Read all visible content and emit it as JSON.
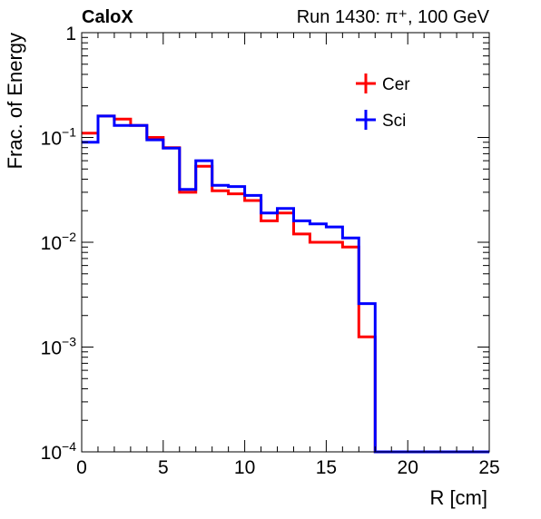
{
  "header": {
    "experiment": "CaloX",
    "run_info": "Run 1430: π⁺, 100 GeV"
  },
  "chart_data": {
    "type": "line",
    "style": "step-histogram",
    "xlabel": "R [cm]",
    "ylabel": "Frac. of Energy",
    "xlim": [
      0,
      25
    ],
    "ylim": [
      0.0001,
      1
    ],
    "yscale": "log",
    "grid": false,
    "legend_position": "top-right",
    "x_ticks": [
      0,
      5,
      10,
      15,
      20,
      25
    ],
    "y_ticks": [
      {
        "value": 0.0001,
        "base": "10",
        "exp": "−4"
      },
      {
        "value": 0.001,
        "base": "10",
        "exp": "−3"
      },
      {
        "value": 0.01,
        "base": "10",
        "exp": "−2"
      },
      {
        "value": 0.1,
        "base": "10",
        "exp": "−1"
      },
      {
        "value": 1,
        "base": "1",
        "exp": ""
      }
    ],
    "bin_edges": [
      0,
      1,
      2,
      3,
      4,
      5,
      6,
      7,
      8,
      9,
      10,
      11,
      12,
      13,
      14,
      15,
      16,
      17,
      18,
      19,
      20,
      21,
      22,
      23,
      24,
      25
    ],
    "series": [
      {
        "name": "Cer",
        "color": "#ff0000",
        "values": [
          0.11,
          0.16,
          0.15,
          0.13,
          0.1,
          0.08,
          0.03,
          0.053,
          0.031,
          0.029,
          0.025,
          0.016,
          0.019,
          0.012,
          0.01,
          0.01,
          0.009,
          0.00125,
          0.0001,
          0.0001,
          0.0001,
          0.0001,
          0.0001,
          0.0001,
          0.0001
        ]
      },
      {
        "name": "Sci",
        "color": "#0000ff",
        "values": [
          0.09,
          0.16,
          0.13,
          0.13,
          0.095,
          0.079,
          0.032,
          0.06,
          0.035,
          0.034,
          0.028,
          0.019,
          0.021,
          0.016,
          0.015,
          0.014,
          0.011,
          0.0026,
          0.0001,
          0.0001,
          0.0001,
          0.0001,
          0.0001,
          0.0001,
          0.0001
        ]
      }
    ]
  }
}
